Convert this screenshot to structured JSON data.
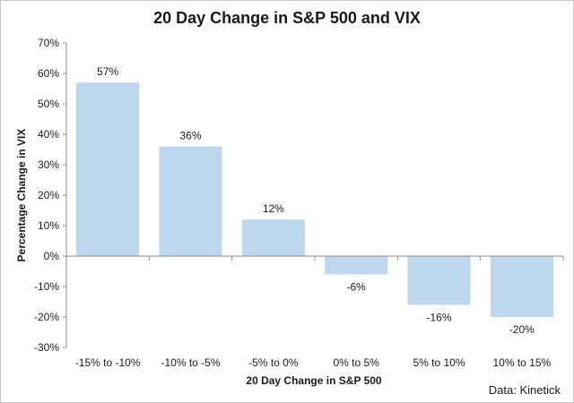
{
  "chart_data": {
    "type": "bar",
    "title": "20 Day Change in S&P 500 and VIX",
    "xlabel": "20 Day Change in S&P 500",
    "ylabel": "Percentage Change in VIX",
    "categories": [
      "-15% to -10%",
      "-10% to -5%",
      "-5% to 0%",
      "0% to 5%",
      "5% to 10%",
      "10% to 15%"
    ],
    "values": [
      57,
      36,
      12,
      -6,
      -16,
      -20
    ],
    "data_labels": [
      "57%",
      "36%",
      "12%",
      "-6%",
      "-16%",
      "-20%"
    ],
    "ylim": [
      -30,
      70
    ],
    "yticks": [
      70,
      60,
      50,
      40,
      30,
      20,
      10,
      0,
      -10,
      -20,
      -30
    ],
    "ytick_labels": [
      "70%",
      "60%",
      "50%",
      "40%",
      "30%",
      "20%",
      "10%",
      "0%",
      "-10%",
      "-20%",
      "-30%"
    ],
    "grid": false,
    "legend": "none",
    "bar_color": "#bdd7ee",
    "source": "Data: Kinetick"
  }
}
